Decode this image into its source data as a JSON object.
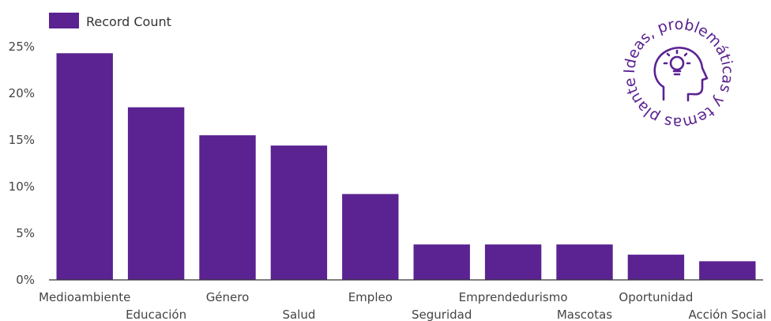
{
  "chart_data": {
    "type": "bar",
    "categories": [
      "Medioambiente",
      "Educación",
      "Género",
      "Salud",
      "Empleo",
      "Seguridad",
      "Emprendedurismo",
      "Mascotas",
      "Oportunidad",
      "Acción Social"
    ],
    "series": [
      {
        "name": "Record Count",
        "values": [
          24.3,
          18.5,
          15.5,
          14.4,
          9.2,
          3.8,
          3.8,
          3.8,
          2.7,
          2.0
        ]
      }
    ],
    "yticks": [
      "0%",
      "5%",
      "10%",
      "15%",
      "20%",
      "25%"
    ],
    "ylim": [
      0,
      25
    ],
    "grid": false,
    "legend_position": "top-left",
    "bar_color": "#5a2391"
  },
  "badge": {
    "text": "Ideas, problemáticas y temas planteados",
    "icon": "head-lightbulb-icon"
  }
}
